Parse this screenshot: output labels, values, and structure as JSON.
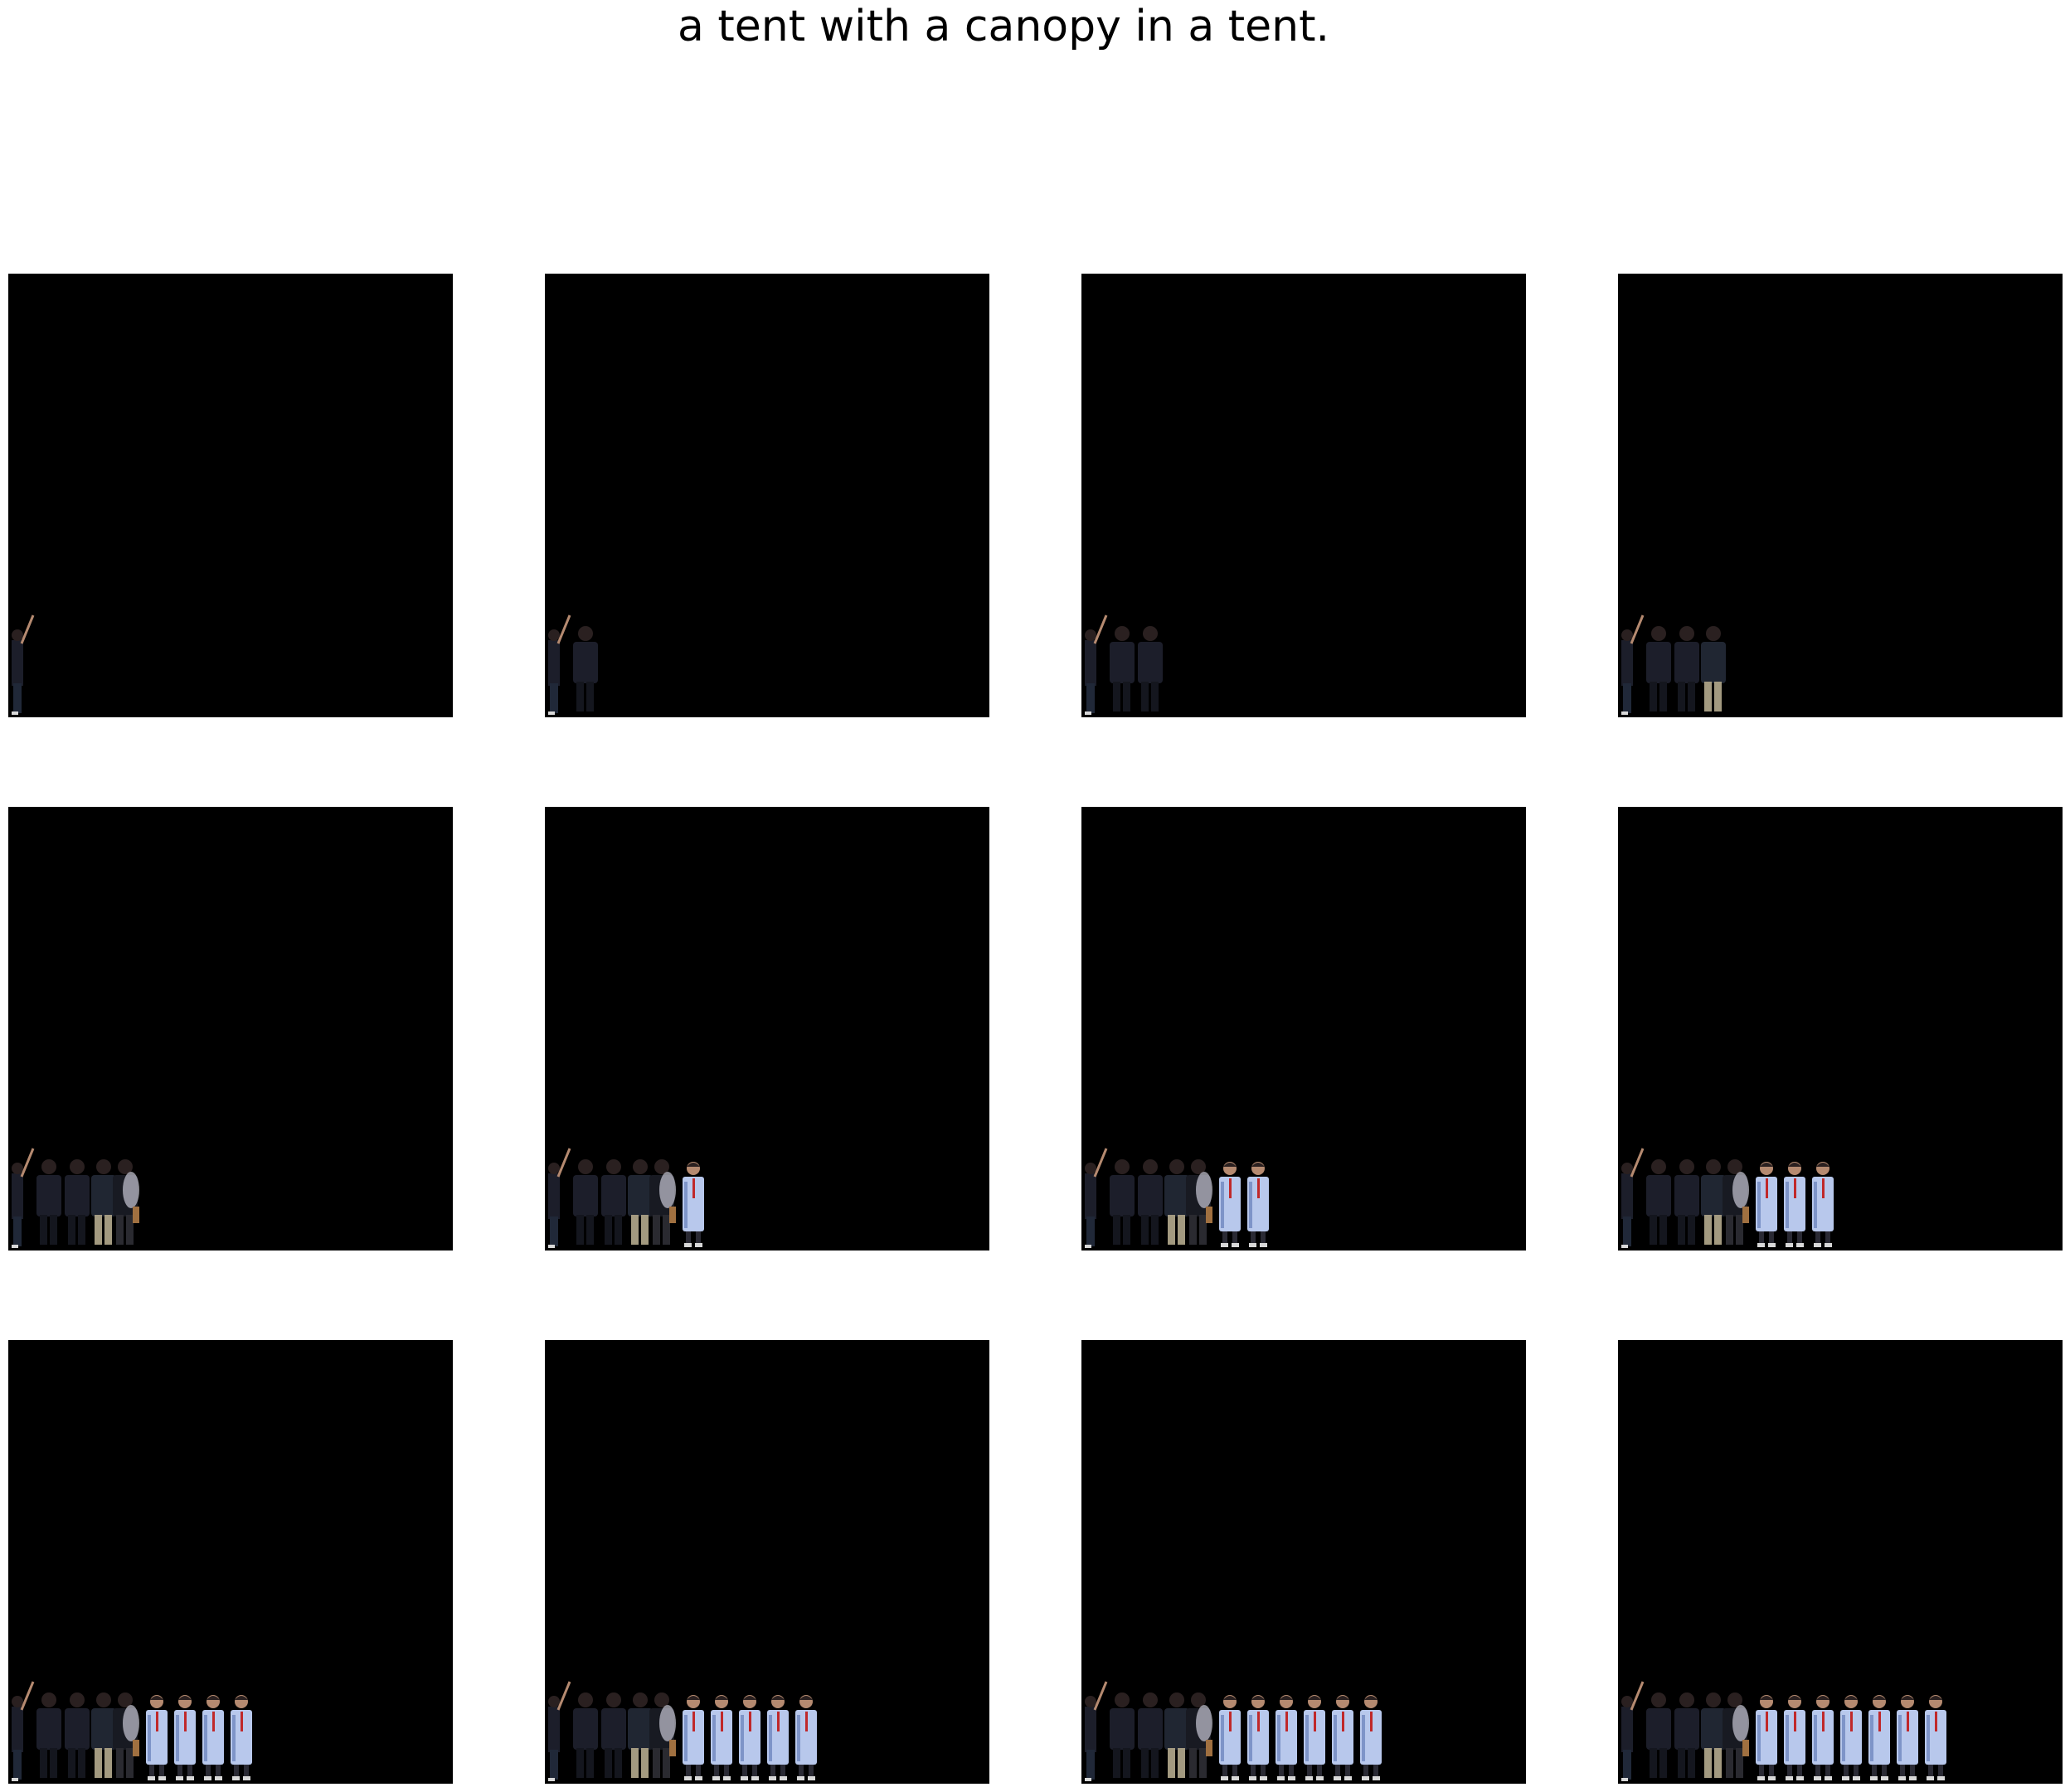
{
  "figure": {
    "title": "a tent with a canopy in a tent.",
    "background": "#ffffff",
    "panel_background": "#000000"
  },
  "panels": [
    {
      "people": [
        "dark-raised",
        "empty",
        "empty",
        "empty",
        "empty",
        "empty",
        "empty",
        "empty",
        "empty"
      ]
    },
    {
      "people": [
        "dark-raised",
        "dark",
        "empty",
        "empty",
        "empty",
        "empty",
        "empty",
        "empty",
        "empty"
      ]
    },
    {
      "people": [
        "dark-raised",
        "dark",
        "dark",
        "empty",
        "empty",
        "empty",
        "empty",
        "empty",
        "empty"
      ]
    },
    {
      "people": [
        "dark-raised",
        "dark",
        "dark",
        "khaki",
        "empty",
        "empty",
        "empty",
        "empty",
        "empty"
      ]
    },
    {
      "people": [
        "dark-raised",
        "dark",
        "dark",
        "khaki",
        "mixed",
        "empty",
        "empty",
        "empty",
        "empty"
      ]
    },
    {
      "people": [
        "dark-raised",
        "dark",
        "dark",
        "khaki",
        "mixed",
        "labcoat",
        "empty",
        "empty",
        "empty"
      ]
    },
    {
      "people": [
        "dark-raised",
        "dark",
        "dark",
        "khaki",
        "mixed",
        "labcoat",
        "labcoat",
        "empty",
        "empty"
      ]
    },
    {
      "people": [
        "dark-raised",
        "dark",
        "dark",
        "khaki",
        "mixed",
        "labcoat",
        "labcoat",
        "labcoat",
        "empty"
      ]
    },
    {
      "people": [
        "dark-raised",
        "dark",
        "dark",
        "khaki",
        "mixed",
        "labcoat",
        "labcoat",
        "labcoat",
        "labcoat"
      ]
    },
    {
      "people": [
        "dark-raised",
        "dark",
        "dark",
        "khaki",
        "mixed",
        "labcoat",
        "labcoat",
        "labcoat",
        "labcoat",
        "labcoat"
      ]
    },
    {
      "people": [
        "dark-raised",
        "dark",
        "dark",
        "khaki",
        "mixed",
        "labcoat",
        "labcoat",
        "labcoat",
        "labcoat",
        "labcoat",
        "labcoat"
      ]
    },
    {
      "people": [
        "dark-raised",
        "dark",
        "dark",
        "khaki",
        "mixed",
        "labcoat",
        "labcoat",
        "labcoat",
        "labcoat",
        "labcoat",
        "labcoat",
        "labcoat"
      ]
    }
  ],
  "palette": {
    "dark": "#1c1e2a",
    "dark_hair": "#2a2020",
    "skin": "#b58a70",
    "khaki": "#a39a80",
    "labcoat": "#b8c8ec",
    "labcoat_shade": "#7e94c8",
    "tie": "#c0282a",
    "shoe": "#d8d8d8"
  }
}
